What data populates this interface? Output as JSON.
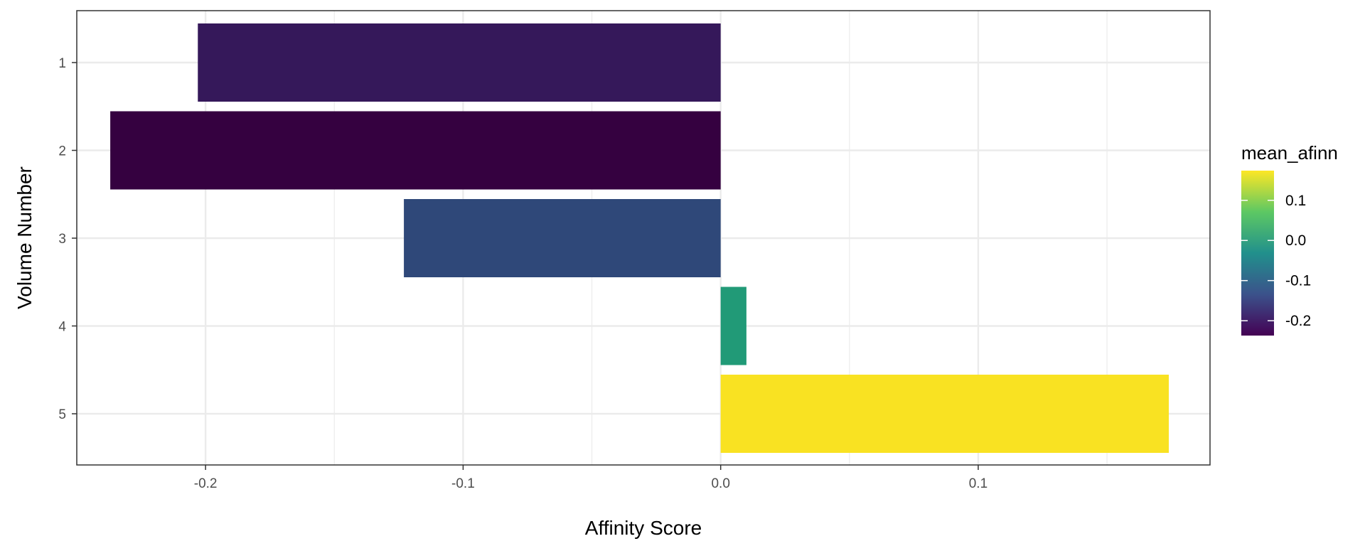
{
  "chart_data": {
    "type": "bar",
    "orientation": "horizontal",
    "xlabel": "Affinity Score",
    "ylabel": "Volume Number",
    "categories": [
      "1",
      "2",
      "3",
      "4",
      "5"
    ],
    "values": [
      -0.203,
      -0.237,
      -0.123,
      0.01,
      0.174
    ],
    "xlim": [
      -0.25,
      0.19
    ],
    "x_ticks": [
      -0.2,
      -0.1,
      0.0,
      0.1
    ],
    "x_tick_labels": [
      "-0.2",
      "-0.1",
      "0.0",
      "0.1"
    ],
    "grid": true,
    "legend": {
      "title": "mean_afinn",
      "type": "colorbar",
      "placement": "right",
      "range": [
        -0.237,
        0.174
      ],
      "ticks": [
        0.1,
        0.0,
        -0.1,
        -0.2
      ],
      "tick_labels": [
        "0.1",
        "0.0",
        "-0.1",
        "-0.2"
      ]
    },
    "colors": {
      "1": "#35185a",
      "2": "#350140",
      "3": "#2f4879",
      "4": "#219a77",
      "5": "#f9e222",
      "colorbar_stops": [
        "#440154",
        "#3b528b",
        "#21908c",
        "#5dc863",
        "#fde725"
      ],
      "gridline": "#ebebeb",
      "panel_border": "#333333"
    }
  }
}
